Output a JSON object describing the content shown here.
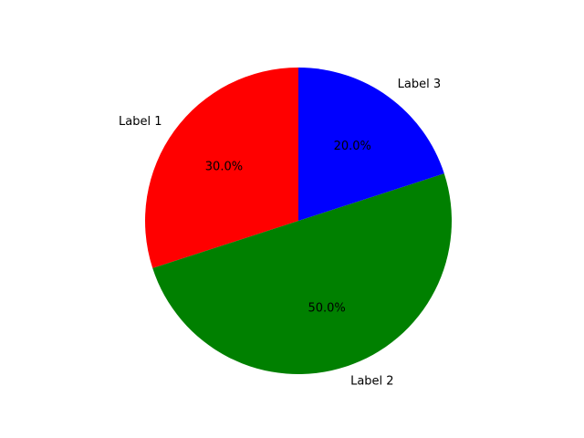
{
  "chart_data": {
    "type": "pie",
    "start_angle_deg": 90,
    "direction": "counterclockwise",
    "slices": [
      {
        "label": "Label 1",
        "value": 30,
        "percent_label": "30.0%",
        "color": "#ff0000"
      },
      {
        "label": "Label 2",
        "value": 50,
        "percent_label": "50.0%",
        "color": "#008000"
      },
      {
        "label": "Label 3",
        "value": 20,
        "percent_label": "20.0%",
        "color": "#0000ff"
      }
    ]
  }
}
